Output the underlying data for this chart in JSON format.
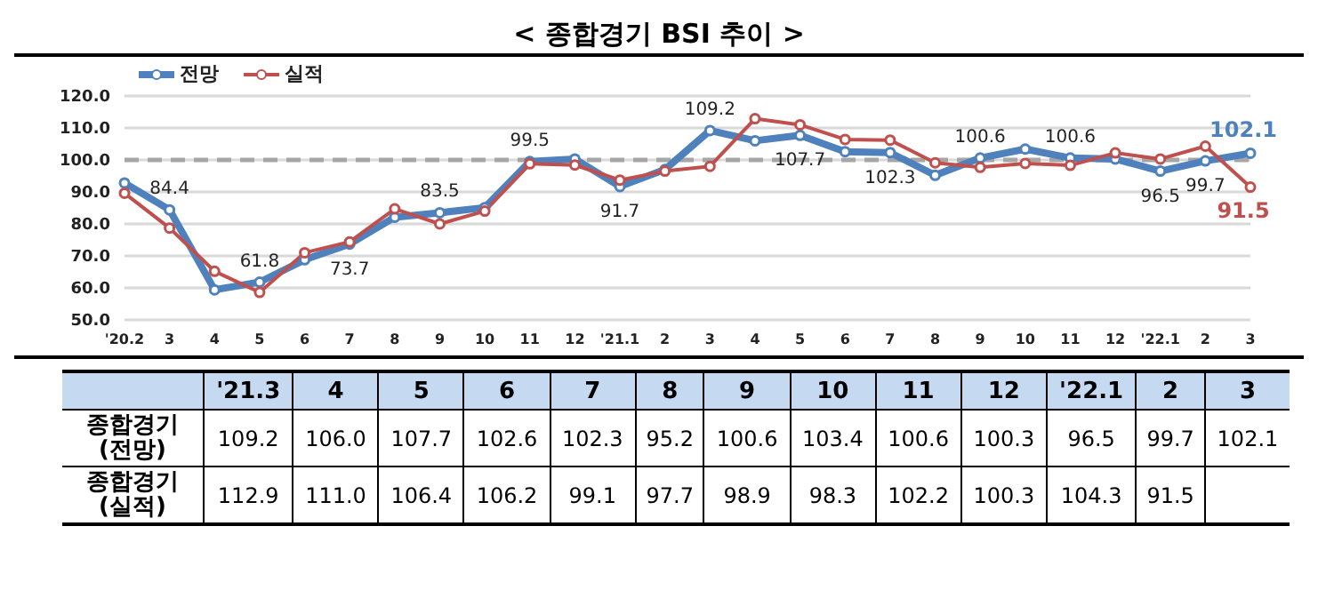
{
  "chart_data": [
    {
      "type": "line",
      "title": "< 종합경기 BSI 추이 >",
      "categories": [
        "'20.2",
        "3",
        "4",
        "5",
        "6",
        "7",
        "8",
        "9",
        "10",
        "11",
        "12",
        "'21.1",
        "2",
        "3",
        "4",
        "5",
        "6",
        "7",
        "8",
        "9",
        "10",
        "11",
        "12",
        "'22.1",
        "2",
        "3"
      ],
      "series": [
        {
          "name": "전망",
          "color": "#4f81bd",
          "values": [
            92.8,
            84.4,
            59.4,
            61.8,
            68.8,
            73.7,
            82.1,
            83.5,
            85.1,
            99.5,
            100.3,
            91.7,
            97.0,
            109.2,
            106.0,
            107.7,
            102.6,
            102.3,
            95.2,
            100.6,
            103.4,
            100.6,
            100.3,
            96.5,
            99.7,
            102.1
          ],
          "value_labels": [
            null,
            "84.4",
            null,
            "61.8",
            null,
            "73.7",
            null,
            "83.5",
            null,
            "99.5",
            null,
            "91.7",
            null,
            "109.2",
            null,
            "107.7",
            null,
            "102.3",
            null,
            "100.6",
            null,
            "100.6",
            null,
            "96.5",
            "99.7",
            "102.1"
          ]
        },
        {
          "name": "실적",
          "color": "#c0504d",
          "values": [
            89.6,
            78.7,
            65.2,
            58.6,
            71.0,
            74.4,
            84.7,
            80.0,
            84.0,
            98.8,
            98.4,
            93.7,
            96.5,
            98.0,
            112.9,
            111.0,
            106.4,
            106.2,
            99.1,
            97.7,
            98.9,
            98.3,
            102.2,
            100.3,
            104.3,
            91.5
          ],
          "value_labels": [
            null,
            null,
            null,
            null,
            null,
            null,
            null,
            null,
            null,
            null,
            null,
            null,
            null,
            null,
            null,
            null,
            null,
            null,
            null,
            null,
            null,
            null,
            null,
            null,
            null,
            "91.5"
          ]
        }
      ],
      "ylim": [
        50,
        120
      ],
      "yticks": [
        {
          "value": 50,
          "label": "50.0"
        },
        {
          "value": 60,
          "label": "60.0"
        },
        {
          "value": 70,
          "label": "70.0"
        },
        {
          "value": 80,
          "label": "80.0"
        },
        {
          "value": 90,
          "label": "90.0"
        },
        {
          "value": 100,
          "label": "100.0"
        },
        {
          "value": 110,
          "label": "110.0"
        },
        {
          "value": 120,
          "label": "120.0"
        }
      ],
      "grid": "y",
      "legend": "top left",
      "marker": "circle",
      "line_style": "solid",
      "ref_lines": [
        {
          "axis": "y",
          "value": 100,
          "color": "#a6a6a6",
          "line_style": "dashed"
        }
      ]
    },
    {
      "type": "heatmap",
      "categories": [
        "'21.3",
        "4",
        "5",
        "6",
        "7",
        "8",
        "9",
        "10",
        "11",
        "12",
        "'22.1",
        "2",
        "3"
      ],
      "y_categories": [
        "종합경기 (전망)",
        "종합경기 (실적)"
      ],
      "cells": [
        [
          109.2,
          106.0,
          107.7,
          102.6,
          102.3,
          95.2,
          100.6,
          103.4,
          100.6,
          100.3,
          96.5,
          99.7,
          102.1
        ],
        [
          112.9,
          111.0,
          106.4,
          106.2,
          99.1,
          97.7,
          98.9,
          98.3,
          102.2,
          100.3,
          104.3,
          91.5,
          null
        ]
      ],
      "cell_labels": [
        [
          "109.2",
          "106.0",
          "107.7",
          "102.6",
          "102.3",
          "95.2",
          "100.6",
          "103.4",
          "100.6",
          "100.3",
          "96.5",
          "99.7",
          "102.1"
        ],
        [
          "112.9",
          "111.0",
          "106.4",
          "106.2",
          "99.1",
          "97.7",
          "98.9",
          "98.3",
          "102.2",
          "100.3",
          "104.3",
          "91.5",
          null
        ]
      ]
    }
  ]
}
